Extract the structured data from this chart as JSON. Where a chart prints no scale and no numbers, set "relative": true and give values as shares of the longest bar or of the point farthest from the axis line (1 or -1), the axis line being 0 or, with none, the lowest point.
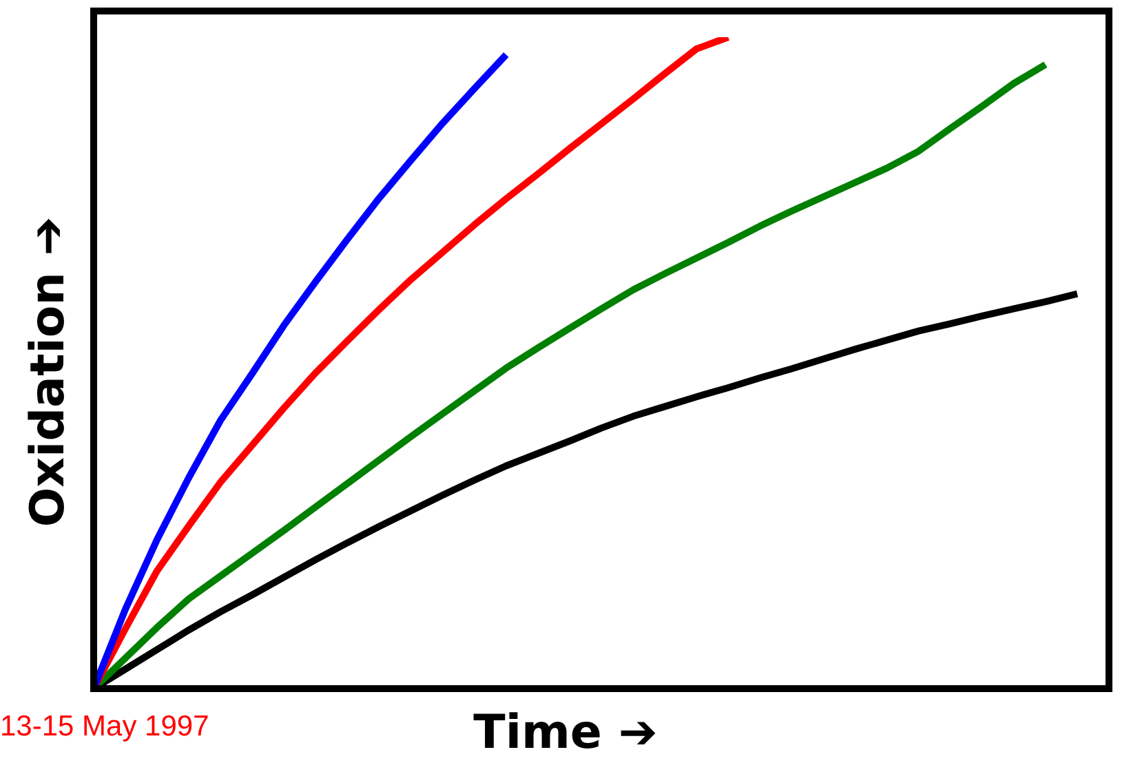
{
  "chart_data": {
    "type": "line",
    "relative": true,
    "xlabel": "Time ➔",
    "ylabel": "Oxidation ➔",
    "annotations": [
      "13-15 May 1997"
    ],
    "legend": false,
    "marker": "none",
    "line_style": "solid",
    "categories": [
      null,
      null,
      null,
      null,
      null,
      null,
      null,
      null,
      null,
      null,
      null,
      null,
      null,
      null,
      null,
      null,
      null,
      null,
      null,
      null,
      null,
      null,
      null,
      null,
      null,
      null,
      null,
      null,
      null,
      null,
      null,
      null,
      null
    ],
    "series": [
      {
        "color": "#0000ff",
        "values": [
          0,
          0.122,
          0.229,
          0.324,
          0.412,
          0.484,
          0.558,
          0.625,
          0.69,
          0.753,
          0.811,
          0.868,
          0.921,
          0.973,
          null,
          null,
          null,
          null,
          null,
          null,
          null,
          null,
          null,
          null,
          null,
          null,
          null,
          null,
          null,
          null,
          null,
          null,
          null
        ]
      },
      {
        "color": "#ff0000",
        "values": [
          0,
          0.092,
          0.181,
          0.25,
          0.317,
          0.374,
          0.431,
          0.485,
          0.534,
          0.582,
          0.628,
          0.67,
          0.712,
          0.752,
          0.79,
          0.829,
          0.867,
          0.905,
          0.944,
          0.982,
          1,
          null,
          null,
          null,
          null,
          null,
          null,
          null,
          null,
          null,
          null,
          null,
          null
        ]
      },
      {
        "color": "#008000",
        "values": [
          0,
          0.047,
          0.094,
          0.138,
          0.173,
          0.208,
          0.243,
          0.279,
          0.315,
          0.351,
          0.387,
          0.422,
          0.457,
          0.492,
          0.523,
          0.553,
          0.583,
          0.612,
          0.637,
          0.661,
          0.685,
          0.71,
          0.733,
          0.755,
          0.777,
          0.799,
          0.825,
          0.86,
          0.894,
          0.929,
          0.958,
          null,
          null
        ]
      },
      {
        "color": "#000000",
        "values": [
          0,
          0.03,
          0.06,
          0.09,
          0.118,
          0.144,
          0.171,
          0.198,
          0.224,
          0.249,
          0.273,
          0.297,
          0.32,
          0.342,
          0.361,
          0.38,
          0.4,
          0.418,
          0.433,
          0.448,
          0.462,
          0.477,
          0.491,
          0.506,
          0.521,
          0.535,
          0.549,
          0.56,
          0.572,
          0.583,
          0.594,
          0.606,
          null
        ]
      }
    ]
  }
}
